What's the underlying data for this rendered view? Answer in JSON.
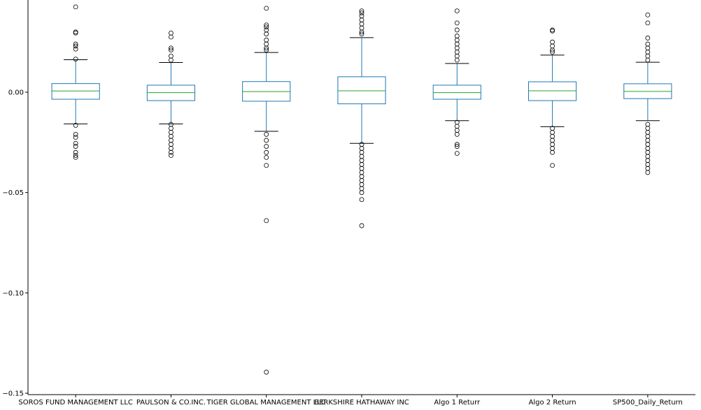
{
  "chart_data": {
    "type": "boxplot",
    "title": "",
    "xlabel": "",
    "ylabel": "",
    "ylim": [
      -0.15,
      0.043
    ],
    "yticks": [
      0.0,
      -0.05,
      -0.1,
      -0.15
    ],
    "ytick_labels": [
      "0.00",
      "−0.05",
      "−0.10",
      "−0.15"
    ],
    "grid": false,
    "colors": {
      "box": "#1f77b4",
      "median": "#2ca02c",
      "flier": "#000000"
    },
    "categories": [
      "SOROS FUND MANAGEMENT LLC",
      "PAULSON & CO.INC.",
      "TIGER GLOBAL MANAGEMENT LLC",
      "BERKSHIRE HATHAWAY INC",
      "Algo 1 Returr",
      "Algo 2 Return",
      "SP500_Daily_Return"
    ],
    "boxes": [
      {
        "whislo": -0.0158,
        "q1": -0.0035,
        "med": 0.0006,
        "q3": 0.0043,
        "whishi": 0.0162,
        "fliers": [
          0.0425,
          0.03,
          0.0295,
          0.024,
          0.023,
          0.0215,
          0.0165,
          -0.0165,
          -0.021,
          -0.0225,
          -0.0255,
          -0.027,
          -0.03,
          -0.0315,
          -0.0325
        ]
      },
      {
        "whislo": -0.0158,
        "q1": -0.0042,
        "med": -0.0002,
        "q3": 0.0035,
        "whishi": 0.0148,
        "fliers": [
          0.0295,
          0.0275,
          0.022,
          0.021,
          0.018,
          0.016,
          -0.016,
          -0.018,
          -0.02,
          -0.022,
          -0.024,
          -0.026,
          -0.028,
          -0.03,
          -0.0315
        ]
      },
      {
        "whislo": -0.0195,
        "q1": -0.0045,
        "med": 0.0003,
        "q3": 0.0053,
        "whishi": 0.0198,
        "fliers": [
          0.0418,
          0.0335,
          0.0325,
          0.031,
          0.029,
          0.026,
          0.024,
          0.022,
          0.021,
          -0.021,
          -0.024,
          -0.027,
          -0.03,
          -0.0325,
          -0.0365,
          -0.064,
          -0.1395
        ]
      },
      {
        "whislo": -0.0255,
        "q1": -0.0058,
        "med": 0.0007,
        "q3": 0.0077,
        "whishi": 0.0272,
        "fliers": [
          0.0405,
          0.0395,
          0.038,
          0.036,
          0.034,
          0.032,
          0.03,
          0.029,
          -0.026,
          -0.028,
          -0.03,
          -0.032,
          -0.034,
          -0.036,
          -0.038,
          -0.04,
          -0.042,
          -0.044,
          -0.046,
          -0.048,
          -0.05,
          -0.0535,
          -0.0665
        ]
      },
      {
        "whislo": -0.0142,
        "q1": -0.0035,
        "med": -0.0002,
        "q3": 0.0035,
        "whishi": 0.0143,
        "fliers": [
          0.0405,
          0.0345,
          0.031,
          0.028,
          0.026,
          0.024,
          0.022,
          0.02,
          0.018,
          0.016,
          -0.015,
          -0.017,
          -0.019,
          -0.021,
          -0.026,
          -0.027,
          -0.0305
        ]
      },
      {
        "whislo": -0.0172,
        "q1": -0.0042,
        "med": 0.0007,
        "q3": 0.0052,
        "whishi": 0.0185,
        "fliers": [
          0.031,
          0.0305,
          0.025,
          0.023,
          0.021,
          0.02,
          -0.018,
          -0.02,
          -0.022,
          -0.024,
          -0.026,
          -0.028,
          -0.03,
          -0.0365
        ]
      },
      {
        "whislo": -0.0142,
        "q1": -0.0032,
        "med": 0.0004,
        "q3": 0.0042,
        "whishi": 0.0149,
        "fliers": [
          0.0385,
          0.0345,
          0.027,
          0.024,
          0.022,
          0.02,
          0.018,
          0.016,
          -0.016,
          -0.018,
          -0.02,
          -0.022,
          -0.024,
          -0.026,
          -0.028,
          -0.03,
          -0.032,
          -0.034,
          -0.036,
          -0.038,
          -0.04
        ]
      }
    ]
  }
}
